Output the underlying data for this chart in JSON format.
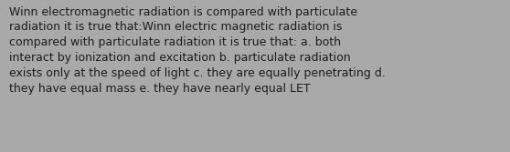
{
  "lines": [
    "Winn electromagnetic radiation is compared with particulate",
    "radiation it is true that:Winn electric magnetic radiation is",
    "compared with particulate radiation it is true that: a. both",
    "interact by ionization and excitation b. particulate radiation",
    "exists only at the speed of light c. they are equally penetrating d.",
    "they have equal mass e. they have nearly equal LET"
  ],
  "background_color": "#a9a9a9",
  "text_color": "#1c1c1c",
  "font_size": 9.0,
  "fig_width": 5.58,
  "fig_height": 1.67,
  "dpi": 100
}
